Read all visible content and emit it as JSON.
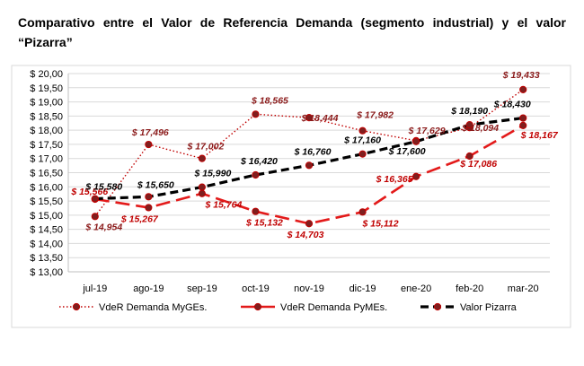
{
  "title": "Comparativo entre el Valor de Referencia Demanda (segmento industrial) y el valor “Pizarra”",
  "chart_data": {
    "type": "line",
    "categories": [
      "jul-19",
      "ago-19",
      "sep-19",
      "oct-19",
      "nov-19",
      "dic-19",
      "ene-20",
      "feb-20",
      "mar-20"
    ],
    "ylim": [
      13.0,
      20.0
    ],
    "y_ticks": [
      "$ 13,00",
      "$ 13,50",
      "$ 14,00",
      "$ 14,50",
      "$ 15,00",
      "$ 15,50",
      "$ 16,00",
      "$ 16,50",
      "$ 17,00",
      "$ 17,50",
      "$ 18,00",
      "$ 18,50",
      "$ 19,00",
      "$ 19,50",
      "$ 20,00"
    ],
    "grid": "horizontal",
    "legend_position": "bottom",
    "series": [
      {
        "name": "VdeR Demanda MyGEs.",
        "values": [
          14.954,
          17.496,
          17.002,
          18.565,
          18.444,
          17.982,
          17.629,
          18.094,
          19.433
        ],
        "labels": [
          "$ 14,954",
          "$ 17,496",
          "$ 17,002",
          "$ 18,565",
          "$ 18,444",
          "$ 17,982",
          "$ 17,629",
          "$ 18,094",
          "$ 19,433"
        ],
        "color": "#c00000",
        "marker_fill": "#7f1f1f",
        "label_color": "#8b1a1a",
        "style": "dotted"
      },
      {
        "name": "VdeR Demanda PyMEs.",
        "values": [
          15.566,
          15.267,
          15.764,
          15.132,
          14.703,
          15.112,
          16.365,
          17.086,
          18.167
        ],
        "labels": [
          "$ 15,566",
          "$ 15,267",
          "$ 15,764",
          "$ 15,132",
          "$ 14,703",
          "$ 15,112",
          "$ 16,365",
          "$ 17,086",
          "$ 18,167"
        ],
        "color": "#e31a1a",
        "marker_fill": "#7f1f1f",
        "label_color": "#c00000",
        "style": "dashed"
      },
      {
        "name": "Valor Pizarra",
        "values": [
          15.58,
          15.65,
          15.99,
          16.42,
          16.76,
          17.16,
          17.6,
          18.19,
          18.43
        ],
        "labels": [
          "$ 15,580",
          "$ 15,650",
          "$ 15,990",
          "$ 16,420",
          "$ 16,760",
          "$ 17,160",
          "$ 17,600",
          "$ 18,190",
          "$ 18,430"
        ],
        "color": "#000000",
        "marker_fill": "#7f1f1f",
        "label_color": "#000000",
        "style": "dashed-bold"
      }
    ]
  }
}
